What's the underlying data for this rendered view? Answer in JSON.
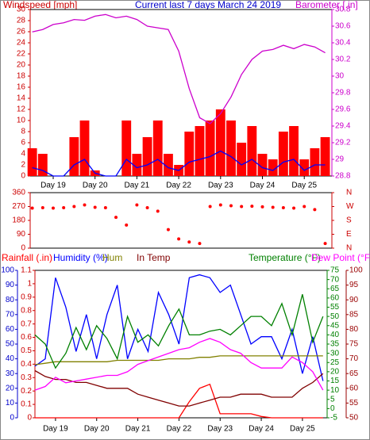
{
  "chart_data": [
    {
      "type": "line",
      "title": "Current last 7 days March 24 2019",
      "y_label": "Windspeed [mph]",
      "y2_label": "Barometer [.in]",
      "x": [
        18.5,
        18.75,
        19,
        19.25,
        19.5,
        19.75,
        20,
        20.25,
        20.5,
        20.75,
        21,
        21.25,
        21.5,
        21.75,
        22,
        22.25,
        22.5,
        22.75,
        23,
        23.25,
        23.5,
        23.75,
        24,
        24.25,
        24.5,
        24.75,
        25,
        25.25,
        25.5
      ],
      "xlim": [
        18.45,
        25.66
      ],
      "xticks": [
        {
          "value": 19,
          "label": "Day 19"
        },
        {
          "value": 20,
          "label": "Day 20"
        },
        {
          "value": 21,
          "label": "Day 21"
        },
        {
          "value": 22,
          "label": "Day 22"
        },
        {
          "value": 23,
          "label": "Day 23"
        },
        {
          "value": 24,
          "label": "Day 24"
        },
        {
          "value": 25,
          "label": "Day 25"
        }
      ],
      "ylim": [
        0,
        30
      ],
      "yticks": [
        0,
        2,
        4,
        6,
        8,
        10,
        12,
        14,
        16,
        18,
        20,
        22,
        24,
        26,
        28,
        30
      ],
      "ycolor": "#cc0000",
      "y2lim": [
        28.8,
        30.8
      ],
      "y2ticks": [
        28.8,
        29,
        29.2,
        29.4,
        29.6,
        29.8,
        30,
        30.2,
        30.4,
        30.6,
        30.8
      ],
      "y2color": "#cc00cc",
      "series": [
        {
          "style": "bar",
          "color": "#ff0000",
          "values": [
            5,
            4,
            0,
            0,
            7,
            10,
            1,
            0,
            0,
            10,
            4,
            7,
            10,
            4,
            2,
            8,
            9,
            10,
            12,
            10,
            6,
            9,
            4,
            3,
            8,
            9,
            3,
            5,
            7
          ]
        },
        {
          "style": "line",
          "color": "#0000ff",
          "values": [
            1.5,
            1,
            0,
            0,
            2,
            3,
            0.5,
            0,
            0,
            3,
            1.5,
            2,
            3,
            1.5,
            1,
            2.5,
            3,
            3.5,
            4.5,
            3.5,
            2,
            3,
            1.5,
            1,
            2.5,
            3,
            1,
            2,
            2
          ]
        },
        {
          "style": "line",
          "color": "#cc00cc",
          "axis": "y2",
          "values": [
            30.53,
            30.56,
            30.62,
            30.64,
            30.68,
            30.67,
            30.72,
            30.74,
            30.7,
            30.72,
            30.68,
            30.6,
            30.58,
            30.56,
            30.3,
            29.85,
            29.5,
            29.43,
            29.55,
            29.75,
            30.02,
            30.2,
            30.3,
            30.32,
            30.37,
            30.33,
            30.38,
            30.35,
            30.28
          ]
        }
      ]
    },
    {
      "type": "scatter",
      "x": [
        18.5,
        18.75,
        19,
        19.25,
        19.5,
        19.75,
        20,
        20.25,
        20.5,
        20.75,
        21,
        21.25,
        21.5,
        21.75,
        22,
        22.25,
        22.5,
        22.75,
        23,
        23.25,
        23.5,
        23.75,
        24,
        24.25,
        24.5,
        24.75,
        25,
        25.25,
        25.5
      ],
      "xlim": [
        18.45,
        25.66
      ],
      "ylim": [
        0,
        360
      ],
      "yticks": [
        360,
        270,
        180,
        90,
        0
      ],
      "ycolor": "#cc0000",
      "y2lim": [
        0,
        360
      ],
      "y2ticks": [
        {
          "value": 360,
          "label": "N"
        },
        {
          "value": 270,
          "label": "W"
        },
        {
          "value": 180,
          "label": "S"
        },
        {
          "value": 90,
          "label": "E"
        },
        {
          "value": 0,
          "label": "N"
        }
      ],
      "y2color": "#cc0000",
      "series": [
        {
          "style": "dot",
          "color": "#ff0000",
          "values": [
            260,
            262,
            260,
            262,
            270,
            280,
            265,
            262,
            200,
            150,
            280,
            262,
            240,
            120,
            60,
            40,
            30,
            270,
            280,
            275,
            270,
            272,
            268,
            265,
            262,
            260,
            270,
            250,
            30
          ]
        }
      ]
    },
    {
      "type": "line",
      "x": [
        18.5,
        18.75,
        19,
        19.25,
        19.5,
        19.75,
        20,
        20.25,
        20.5,
        20.75,
        21,
        21.25,
        21.5,
        21.75,
        22,
        22.25,
        22.5,
        22.75,
        23,
        23.25,
        23.5,
        23.75,
        24,
        24.25,
        24.5,
        24.75,
        25,
        25.25,
        25.5
      ],
      "xlim": [
        18.5,
        25.6
      ],
      "xticks": [
        {
          "value": 19,
          "label": "Day 19"
        },
        {
          "value": 20,
          "label": "Day 20"
        },
        {
          "value": 21,
          "label": "Day 21"
        },
        {
          "value": 22,
          "label": "Day 22"
        },
        {
          "value": 23,
          "label": "Day 23"
        },
        {
          "value": 24,
          "label": "Day 24"
        },
        {
          "value": 25,
          "label": "Day 25"
        }
      ],
      "ylim": [
        0,
        100
      ],
      "yticks": [
        100,
        90,
        80,
        70,
        60,
        50,
        40,
        30,
        20,
        10,
        0
      ],
      "ycolor": "#0000cc",
      "y2lim": [
        0,
        1.1
      ],
      "y2ticks": [
        1.1,
        1,
        0.9,
        0.8,
        0.7,
        0.6,
        0.5,
        0.4,
        0.3,
        0.2,
        0.1,
        0
      ],
      "y2color": "#cc0000",
      "y3lim": [
        -5,
        75
      ],
      "y3ticks": [
        75,
        70,
        65,
        60,
        55,
        50,
        45,
        40,
        35,
        30,
        25,
        20,
        15,
        10,
        5,
        0,
        -5
      ],
      "y3color": "#008000",
      "y4lim": [
        50,
        100
      ],
      "y4ticks": [
        100,
        95,
        90,
        85,
        80,
        75,
        70,
        65,
        60,
        55,
        50
      ],
      "y4color": "#990000",
      "series": [
        {
          "name": "Rainfall (.in)",
          "style": "line",
          "color": "#ff0000",
          "axis": "y2",
          "values": [
            0,
            0,
            0,
            0,
            0,
            0,
            0,
            0,
            0,
            0,
            0,
            0,
            0,
            0,
            0,
            0.12,
            0.22,
            0.25,
            0.03,
            0.03,
            0.03,
            0.03,
            0.01,
            0,
            0,
            0,
            0,
            0,
            0
          ]
        },
        {
          "name": "Humidity (%)",
          "style": "line",
          "color": "#0000ff",
          "values": [
            35,
            40,
            95,
            75,
            45,
            70,
            40,
            70,
            90,
            40,
            60,
            45,
            85,
            70,
            50,
            95,
            97,
            95,
            85,
            90,
            70,
            50,
            55,
            55,
            40,
            60,
            30,
            55,
            25
          ]
        },
        {
          "name": "Hum",
          "style": "line",
          "color": "#808000",
          "values": [
            36,
            37,
            38,
            38,
            38,
            38,
            38,
            38,
            39,
            39,
            39,
            39,
            39,
            40,
            40,
            40,
            41,
            41,
            42,
            42,
            42,
            42,
            42,
            42,
            42,
            42,
            42,
            42,
            42
          ]
        },
        {
          "name": "In Temp",
          "style": "line",
          "color": "#800000",
          "axis": "y4",
          "values": [
            66,
            64,
            63,
            63,
            62,
            62,
            61,
            60,
            60,
            60,
            58,
            57,
            56,
            55,
            54,
            54,
            55,
            56,
            57,
            57,
            58,
            58,
            58,
            57,
            57,
            57,
            60,
            62,
            65
          ]
        },
        {
          "name": "Temperature (°F)",
          "style": "line",
          "color": "#008000",
          "axis": "y3",
          "values": [
            40,
            35,
            22,
            30,
            44,
            32,
            45,
            38,
            27,
            50,
            36,
            40,
            34,
            45,
            54,
            40,
            40,
            42,
            43,
            40,
            45,
            50,
            50,
            45,
            57,
            40,
            62,
            36,
            50
          ]
        },
        {
          "name": "Dew Point (°F)",
          "style": "line",
          "color": "#ff00ff",
          "axis": "y3",
          "values": [
            10,
            12,
            17,
            14,
            15,
            16,
            17,
            18,
            18,
            20,
            24,
            26,
            28,
            30,
            32,
            33,
            36,
            38,
            36,
            32,
            30,
            25,
            22,
            22,
            22,
            28,
            25,
            20,
            10
          ]
        }
      ]
    }
  ]
}
